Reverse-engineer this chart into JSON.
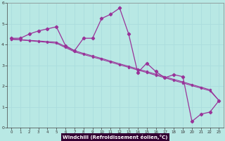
{
  "xlabel": "Windchill (Refroidissement éolien,°C)",
  "bg_color": "#b8e8e4",
  "line_color": "#993399",
  "grid_color": "#aadddd",
  "xlabel_bg": "#330033",
  "xlabel_fg": "#ffffff",
  "xlim": [
    -0.5,
    23.5
  ],
  "ylim": [
    0,
    6
  ],
  "xticks": [
    0,
    1,
    2,
    3,
    4,
    5,
    6,
    7,
    8,
    9,
    10,
    11,
    12,
    13,
    14,
    15,
    16,
    17,
    18,
    19,
    20,
    21,
    22,
    23
  ],
  "yticks": [
    0,
    1,
    2,
    3,
    4,
    5,
    6
  ],
  "main_x": [
    0,
    1,
    2,
    3,
    4,
    5,
    6,
    7,
    8,
    9,
    10,
    11,
    12,
    13,
    14,
    15,
    16,
    17,
    18,
    19,
    20,
    21,
    22,
    23
  ],
  "main_y": [
    4.3,
    4.3,
    4.5,
    4.65,
    4.75,
    4.85,
    3.95,
    3.7,
    4.3,
    4.3,
    5.25,
    5.45,
    5.75,
    4.5,
    2.65,
    3.1,
    2.7,
    2.4,
    2.55,
    2.45,
    0.3,
    0.65,
    0.75,
    1.3
  ],
  "line2_x": [
    0,
    23
  ],
  "line2_y": [
    4.25,
    1.3
  ],
  "line3_x": [
    0,
    23
  ],
  "line3_y": [
    4.25,
    1.3
  ],
  "trend1_x": [
    0,
    1,
    2,
    3,
    4,
    5,
    6,
    7,
    8,
    9,
    10,
    11,
    12,
    13,
    14,
    15,
    16,
    17,
    18,
    19,
    20,
    21,
    22,
    23
  ],
  "trend1_y": [
    4.25,
    4.22,
    4.18,
    4.14,
    4.1,
    4.06,
    3.85,
    3.65,
    3.52,
    3.4,
    3.28,
    3.15,
    3.02,
    2.9,
    2.77,
    2.65,
    2.52,
    2.4,
    2.27,
    2.15,
    2.02,
    1.9,
    1.77,
    1.3
  ],
  "trend2_x": [
    0,
    1,
    2,
    3,
    4,
    5,
    6,
    7,
    8,
    9,
    10,
    11,
    12,
    13,
    14,
    15,
    16,
    17,
    18,
    19,
    20,
    21,
    22,
    23
  ],
  "trend2_y": [
    4.25,
    4.23,
    4.2,
    4.17,
    4.14,
    4.11,
    3.9,
    3.7,
    3.57,
    3.45,
    3.33,
    3.2,
    3.07,
    2.95,
    2.82,
    2.7,
    2.57,
    2.45,
    2.32,
    2.2,
    2.07,
    1.95,
    1.82,
    1.3
  ]
}
